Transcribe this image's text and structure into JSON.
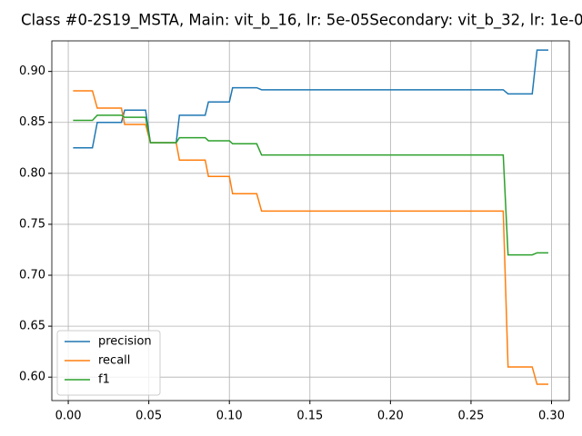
{
  "chart_data": {
    "type": "line",
    "title": "Class #0-2S19_MSTA, Main: vit_b_16, lr: 5e-05Secondary: vit_b_32, lr: 1e-0",
    "x": [
      0.003,
      0.015,
      0.018,
      0.033,
      0.035,
      0.048,
      0.051,
      0.067,
      0.069,
      0.085,
      0.087,
      0.1,
      0.102,
      0.117,
      0.12,
      0.27,
      0.273,
      0.288,
      0.291,
      0.298
    ],
    "series": [
      {
        "name": "precision",
        "color": "#1f77b4",
        "values": [
          0.825,
          0.825,
          0.85,
          0.85,
          0.862,
          0.862,
          0.83,
          0.83,
          0.857,
          0.857,
          0.87,
          0.87,
          0.884,
          0.884,
          0.882,
          0.882,
          0.878,
          0.878,
          0.921,
          0.921
        ]
      },
      {
        "name": "recall",
        "color": "#ff7f0e",
        "values": [
          0.881,
          0.881,
          0.864,
          0.864,
          0.848,
          0.848,
          0.83,
          0.83,
          0.813,
          0.813,
          0.797,
          0.797,
          0.78,
          0.78,
          0.763,
          0.763,
          0.61,
          0.61,
          0.593,
          0.593
        ]
      },
      {
        "name": "f1",
        "color": "#2ca02c",
        "values": [
          0.852,
          0.852,
          0.857,
          0.857,
          0.855,
          0.855,
          0.83,
          0.83,
          0.835,
          0.835,
          0.832,
          0.832,
          0.829,
          0.829,
          0.818,
          0.818,
          0.72,
          0.72,
          0.722,
          0.722
        ]
      }
    ],
    "xlim": [
      -0.0102,
      0.311
    ],
    "xticks": [
      {
        "value": 0,
        "label": "0.00"
      },
      0.05,
      {
        "value": 0.1,
        "label": "0.10"
      },
      0.15,
      {
        "value": 0.2,
        "label": "0.20"
      },
      0.25,
      {
        "value": 0.3,
        "label": "0.30"
      }
    ],
    "ylim": [
      0.577,
      0.93
    ],
    "yticks": [
      {
        "value": 0.6,
        "label": "0.60"
      },
      0.65,
      {
        "value": 0.7,
        "label": "0.70"
      },
      0.75,
      {
        "value": 0.8,
        "label": "0.80"
      },
      0.85,
      {
        "value": 0.9,
        "label": "0.90"
      }
    ],
    "grid": true,
    "legend": "lower-left"
  }
}
